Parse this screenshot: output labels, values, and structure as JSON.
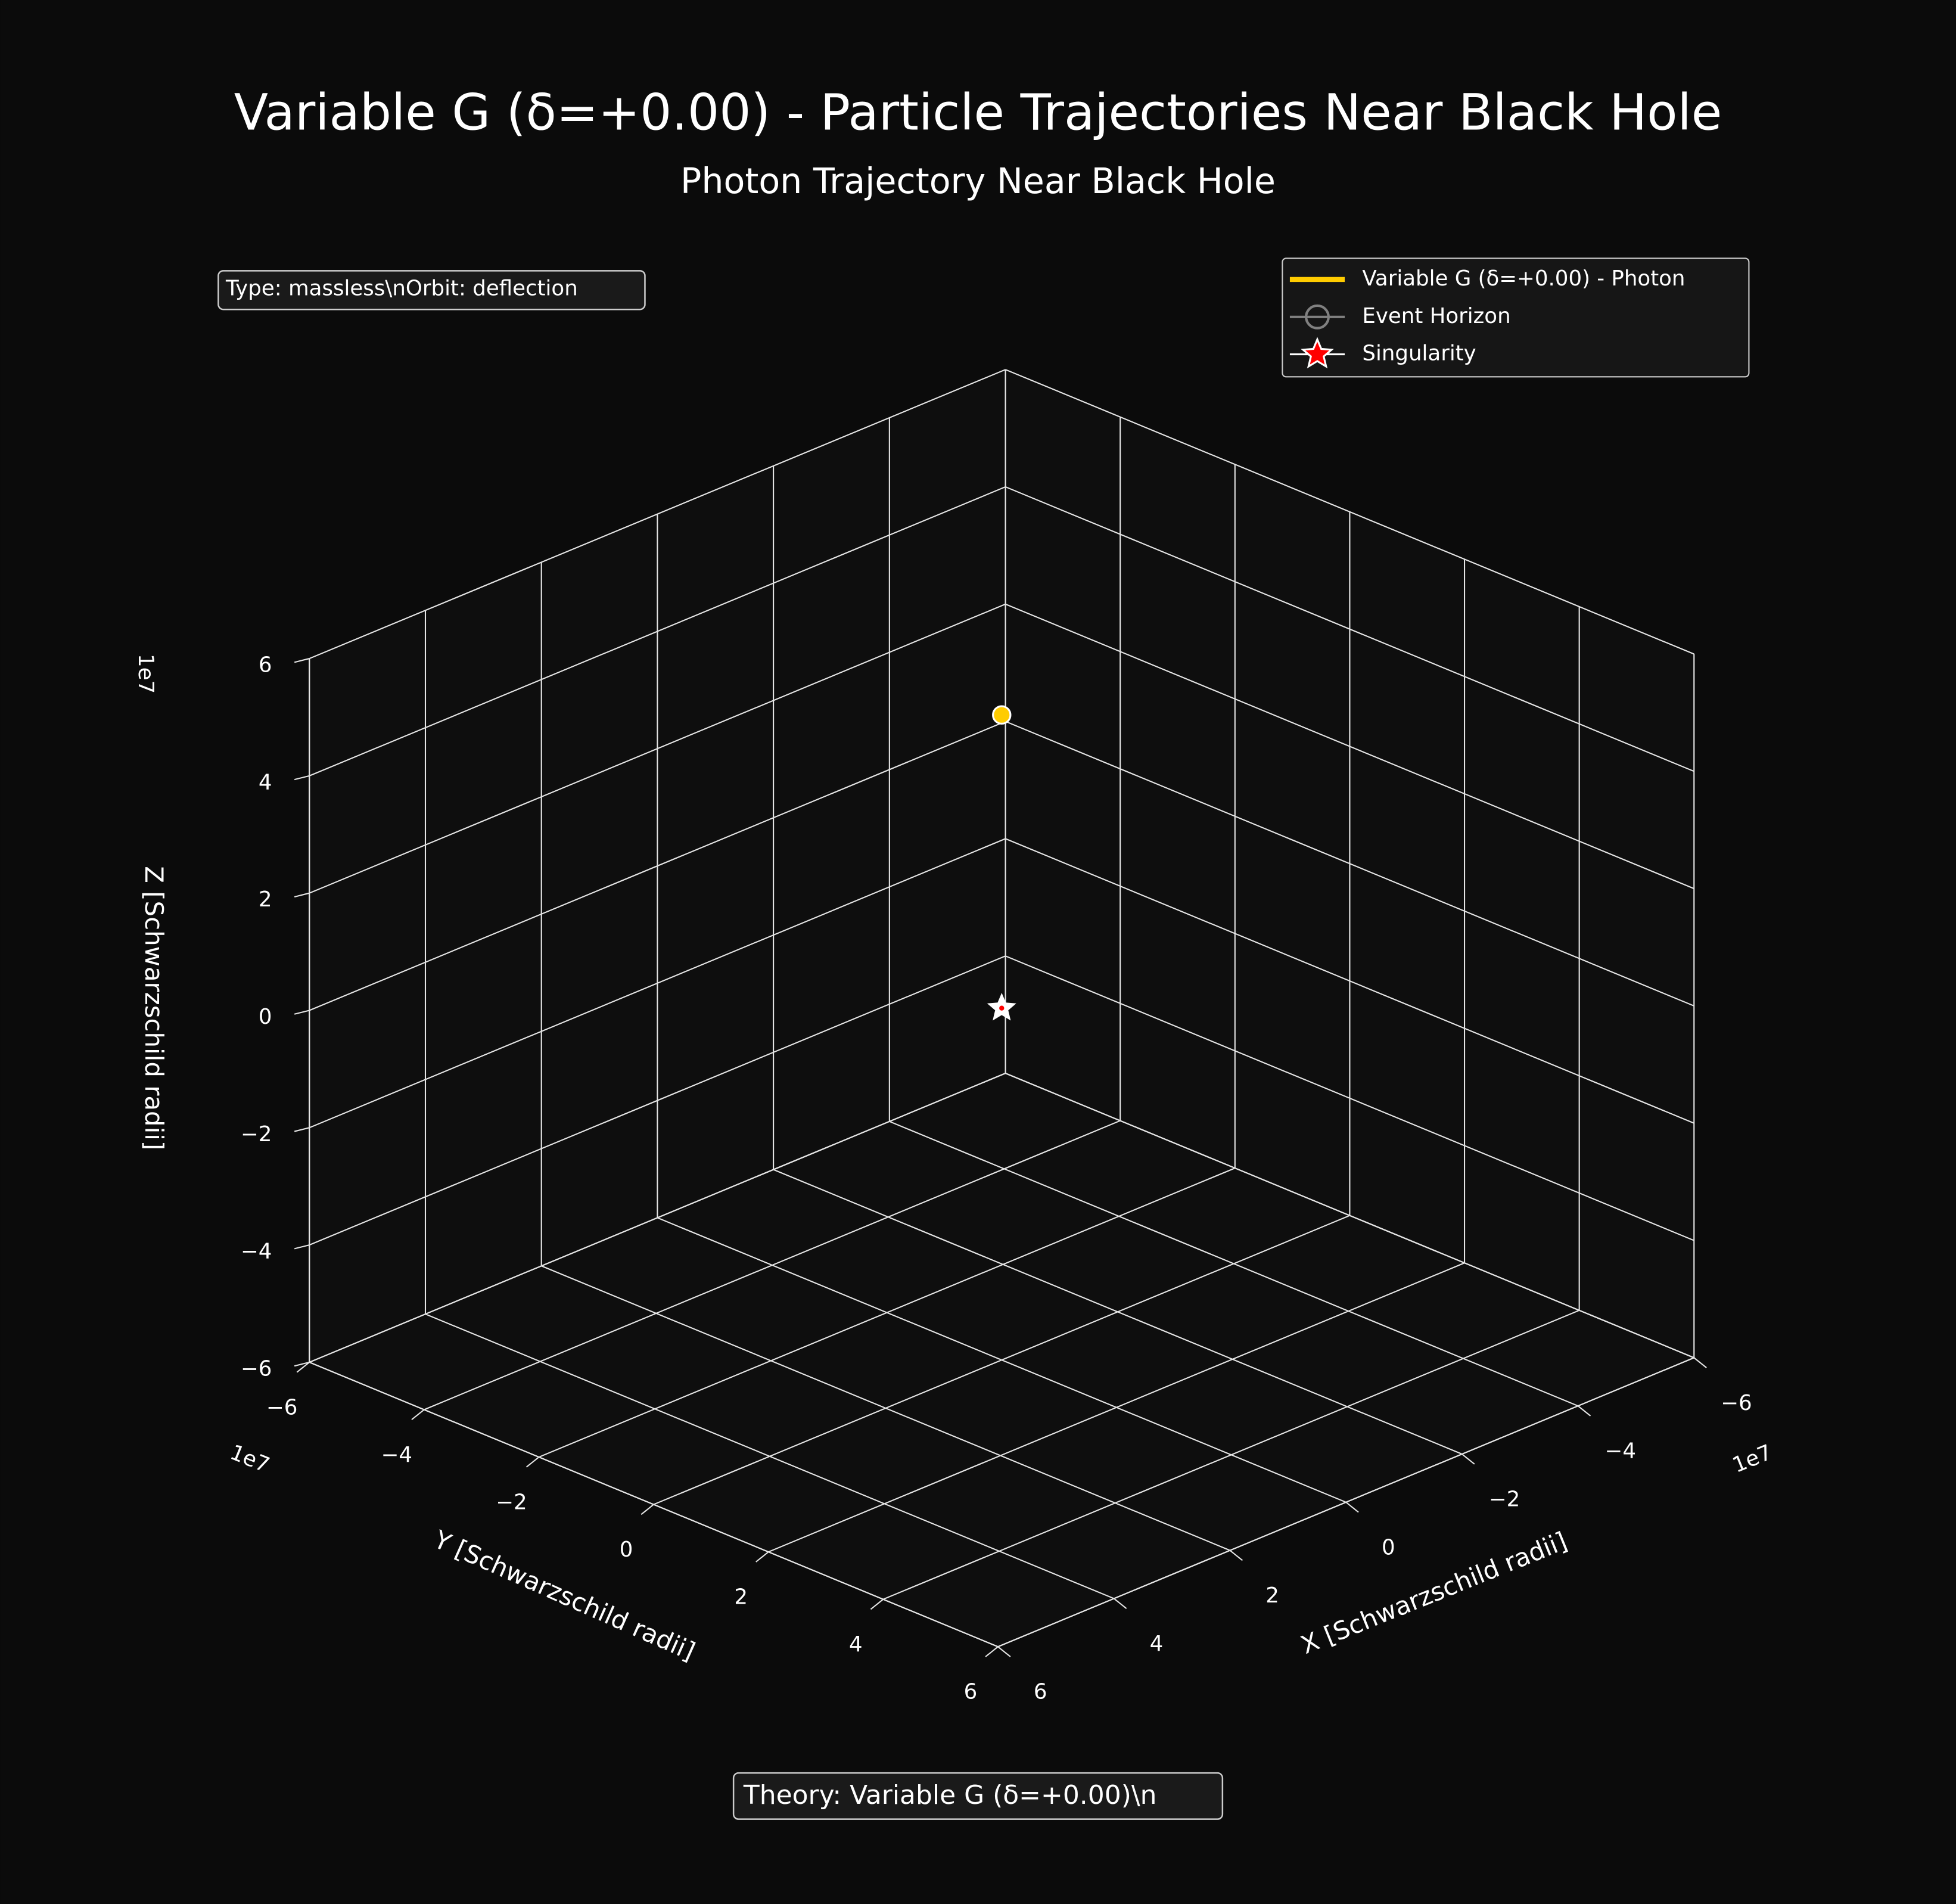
{
  "chart_data": {
    "type": "scatter3d",
    "title": "Variable G (δ=+0.00) - Particle Trajectories Near Black Hole",
    "subtitle": "Photon Trajectory Near Black Hole",
    "info_text": "Type: massless\\nOrbit: deflection",
    "footer_text": "Theory: Variable G (δ=+0.00)\\n",
    "xlabel": "X [Schwarzschild radii]",
    "ylabel": "Y [Schwarzschild radii]",
    "zlabel": "Z [Schwarzschild radii]",
    "x_offset_text": "1e7",
    "y_offset_text": "1e7",
    "z_offset_text": "1e7",
    "xlim": [
      -60000000,
      60000000
    ],
    "ylim": [
      -60000000,
      60000000
    ],
    "zlim": [
      -60000000,
      60000000
    ],
    "xticks": [
      {
        "value": -60000000,
        "label": "−6"
      },
      {
        "value": -40000000,
        "label": "−4"
      },
      {
        "value": -20000000,
        "label": "−2"
      },
      {
        "value": 0,
        "label": "0"
      },
      {
        "value": 20000000,
        "label": "2"
      },
      {
        "value": 40000000,
        "label": "4"
      },
      {
        "value": 60000000,
        "label": "6"
      }
    ],
    "yticks": [
      {
        "value": -60000000,
        "label": "−6"
      },
      {
        "value": -40000000,
        "label": "−4"
      },
      {
        "value": -20000000,
        "label": "−2"
      },
      {
        "value": 0,
        "label": "0"
      },
      {
        "value": 20000000,
        "label": "2"
      },
      {
        "value": 40000000,
        "label": "4"
      },
      {
        "value": 60000000,
        "label": "6"
      }
    ],
    "zticks": [
      {
        "value": -60000000,
        "label": "−6"
      },
      {
        "value": -40000000,
        "label": "−4"
      },
      {
        "value": -20000000,
        "label": "−2"
      },
      {
        "value": 0,
        "label": "0"
      },
      {
        "value": 20000000,
        "label": "2"
      },
      {
        "value": 40000000,
        "label": "4"
      },
      {
        "value": 60000000,
        "label": "6"
      }
    ],
    "grid": true,
    "legend": "upper right",
    "series": [
      {
        "name": "Variable G (δ=+0.00) - Photon",
        "color": "#ffcc00",
        "marker": "line",
        "x": [
          0
        ],
        "y": [
          0
        ],
        "z": [
          50000000
        ]
      },
      {
        "name": "Event Horizon",
        "color": "#808080",
        "marker": "circle"
      },
      {
        "name": "Singularity",
        "color": "#ff0000",
        "marker": "star",
        "x": [
          0
        ],
        "y": [
          0
        ],
        "z": [
          0
        ]
      }
    ]
  }
}
